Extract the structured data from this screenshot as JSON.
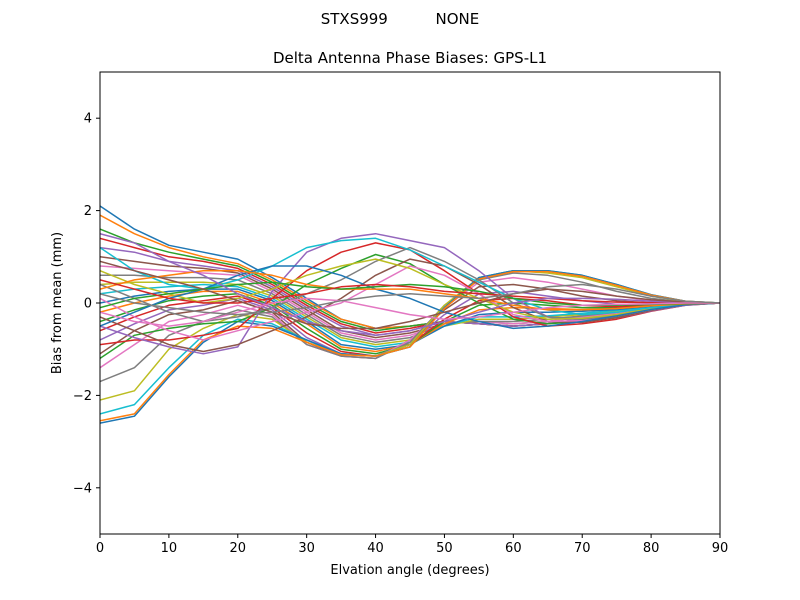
{
  "suptitle": "STXS999          NONE",
  "chart_data": {
    "type": "line",
    "title": "Delta Antenna Phase Biases: GPS-L1",
    "xlabel": "Elvation angle (degrees)",
    "ylabel": "Bias from mean (mm)",
    "xlim": [
      0,
      90
    ],
    "ylim": [
      -5,
      5
    ],
    "xticks": [
      0,
      10,
      20,
      30,
      40,
      50,
      60,
      70,
      80,
      90
    ],
    "yticks": [
      -4,
      -2,
      0,
      2,
      4
    ],
    "grid": false,
    "legend": "none",
    "x": [
      0,
      5,
      10,
      15,
      20,
      25,
      30,
      35,
      40,
      45,
      50,
      55,
      60,
      65,
      70,
      75,
      80,
      85,
      90
    ],
    "colors": [
      "#1f77b4",
      "#ff7f0e",
      "#2ca02c",
      "#d62728",
      "#9467bd",
      "#8c564b",
      "#e377c2",
      "#7f7f7f",
      "#bcbd22",
      "#17becf"
    ],
    "series": [
      {
        "values": [
          2.1,
          1.6,
          1.25,
          1.1,
          0.95,
          0.55,
          0.1,
          -0.35,
          -0.55,
          -0.5,
          -0.4,
          -0.45,
          -0.5,
          -0.45,
          -0.35,
          -0.25,
          -0.12,
          -0.04,
          0
        ]
      },
      {
        "values": [
          1.9,
          1.5,
          1.2,
          1.0,
          0.85,
          0.5,
          0.05,
          -0.35,
          -0.55,
          -0.5,
          -0.4,
          -0.45,
          -0.5,
          -0.45,
          -0.35,
          -0.25,
          -0.12,
          -0.04,
          0
        ]
      },
      {
        "values": [
          1.6,
          1.3,
          1.1,
          0.95,
          0.8,
          0.45,
          0.0,
          -0.4,
          -0.6,
          -0.5,
          -0.4,
          -0.45,
          -0.5,
          -0.45,
          -0.35,
          -0.25,
          -0.12,
          -0.04,
          0
        ]
      },
      {
        "values": [
          1.4,
          1.2,
          1.0,
          0.9,
          0.75,
          0.4,
          -0.05,
          -0.45,
          -0.65,
          -0.55,
          -0.4,
          -0.45,
          -0.5,
          -0.45,
          -0.35,
          -0.25,
          -0.12,
          -0.04,
          0
        ]
      },
      {
        "values": [
          1.2,
          1.1,
          0.9,
          0.8,
          0.7,
          0.35,
          -0.1,
          -0.5,
          -0.7,
          -0.6,
          -0.4,
          -0.45,
          -0.5,
          -0.45,
          -0.35,
          -0.25,
          -0.12,
          -0.04,
          0
        ]
      },
      {
        "values": [
          1.0,
          0.9,
          0.8,
          0.75,
          0.65,
          0.3,
          -0.15,
          -0.6,
          -0.75,
          -0.65,
          -0.45,
          -0.4,
          -0.45,
          -0.4,
          -0.3,
          -0.22,
          -0.1,
          -0.03,
          0
        ]
      },
      {
        "values": [
          0.8,
          0.75,
          0.7,
          0.65,
          0.6,
          0.25,
          -0.2,
          -0.65,
          -0.8,
          -0.7,
          -0.45,
          -0.4,
          -0.45,
          -0.4,
          -0.3,
          -0.22,
          -0.1,
          -0.03,
          0
        ]
      },
      {
        "values": [
          0.6,
          0.6,
          0.55,
          0.55,
          0.5,
          0.2,
          -0.25,
          -0.7,
          -0.85,
          -0.75,
          -0.45,
          -0.4,
          -0.4,
          -0.35,
          -0.28,
          -0.2,
          -0.1,
          -0.03,
          0
        ]
      },
      {
        "values": [
          0.4,
          0.45,
          0.45,
          0.45,
          0.4,
          0.15,
          -0.3,
          -0.75,
          -0.9,
          -0.8,
          -0.5,
          -0.35,
          -0.35,
          -0.3,
          -0.25,
          -0.18,
          -0.09,
          -0.03,
          0
        ]
      },
      {
        "values": [
          0.2,
          0.3,
          0.35,
          0.4,
          0.35,
          0.1,
          -0.35,
          -0.8,
          -0.95,
          -0.85,
          -0.5,
          -0.3,
          -0.3,
          -0.28,
          -0.22,
          -0.16,
          -0.08,
          -0.02,
          0
        ]
      },
      {
        "values": [
          0.0,
          0.15,
          0.25,
          0.3,
          0.3,
          0.05,
          -0.4,
          -0.9,
          -1.0,
          -0.9,
          -0.5,
          -0.25,
          -0.2,
          -0.2,
          -0.18,
          -0.14,
          -0.07,
          -0.02,
          0
        ]
      },
      {
        "values": [
          -0.2,
          0.0,
          0.15,
          0.25,
          0.25,
          0.0,
          -0.45,
          -0.95,
          -1.05,
          -0.9,
          -0.45,
          -0.15,
          -0.1,
          -0.12,
          -0.14,
          -0.12,
          -0.06,
          -0.02,
          0
        ]
      },
      {
        "values": [
          -0.4,
          -0.15,
          0.05,
          0.15,
          0.2,
          -0.05,
          -0.55,
          -1.0,
          -1.1,
          -0.9,
          -0.4,
          -0.05,
          0.0,
          -0.05,
          -0.1,
          -0.1,
          -0.05,
          -0.02,
          0
        ]
      },
      {
        "values": [
          -0.6,
          -0.3,
          -0.05,
          0.05,
          0.15,
          -0.1,
          -0.65,
          -1.05,
          -1.15,
          -0.9,
          -0.35,
          0.05,
          0.1,
          0.05,
          -0.05,
          -0.08,
          -0.04,
          -0.01,
          0
        ]
      },
      {
        "values": [
          -0.8,
          -0.45,
          -0.15,
          -0.05,
          0.1,
          -0.15,
          -0.75,
          -1.1,
          -1.15,
          -0.85,
          -0.25,
          0.2,
          0.25,
          0.15,
          0.05,
          -0.03,
          -0.02,
          -0.01,
          0
        ]
      },
      {
        "values": [
          -1.1,
          -0.6,
          -0.25,
          -0.15,
          0.05,
          -0.2,
          -0.85,
          -1.15,
          -1.2,
          -0.8,
          -0.15,
          0.35,
          0.4,
          0.3,
          0.15,
          0.05,
          0.0,
          0.0,
          0
        ]
      },
      {
        "values": [
          -1.4,
          -0.9,
          -0.4,
          -0.25,
          -0.05,
          -0.25,
          -0.9,
          -1.15,
          -1.2,
          -0.8,
          -0.1,
          0.45,
          0.55,
          0.45,
          0.3,
          0.15,
          0.05,
          0.01,
          0
        ]
      },
      {
        "values": [
          -1.7,
          -1.4,
          -0.7,
          -0.4,
          -0.15,
          -0.3,
          -0.9,
          -1.15,
          -1.2,
          -0.85,
          -0.05,
          0.5,
          0.65,
          0.6,
          0.45,
          0.25,
          0.1,
          0.02,
          0
        ]
      },
      {
        "values": [
          -2.1,
          -1.9,
          -1.0,
          -0.55,
          -0.25,
          -0.35,
          -0.85,
          -1.1,
          -1.15,
          -0.9,
          -0.05,
          0.55,
          0.7,
          0.65,
          0.55,
          0.35,
          0.15,
          0.03,
          0
        ]
      },
      {
        "values": [
          -2.4,
          -2.2,
          -1.4,
          -0.7,
          -0.35,
          -0.45,
          -0.8,
          -1.1,
          -1.15,
          -0.95,
          -0.1,
          0.55,
          0.7,
          0.7,
          0.6,
          0.4,
          0.18,
          0.04,
          0
        ]
      },
      {
        "values": [
          -2.6,
          -2.45,
          -1.6,
          -0.85,
          -0.4,
          -0.5,
          -0.8,
          -1.1,
          -1.15,
          -0.95,
          -0.1,
          0.55,
          0.7,
          0.7,
          0.6,
          0.4,
          0.18,
          0.04,
          0
        ]
      },
      {
        "values": [
          -2.55,
          -2.4,
          -1.55,
          -0.8,
          -0.5,
          -0.55,
          -0.85,
          -1.12,
          -1.15,
          -0.95,
          -0.12,
          0.52,
          0.68,
          0.68,
          0.58,
          0.38,
          0.17,
          0.04,
          0
        ]
      },
      {
        "values": [
          -1.2,
          -0.7,
          -0.55,
          -0.45,
          -0.4,
          -0.1,
          0.4,
          0.75,
          1.05,
          0.85,
          0.4,
          0.0,
          -0.35,
          -0.45,
          -0.4,
          -0.3,
          -0.15,
          -0.04,
          0
        ]
      },
      {
        "values": [
          -0.9,
          -0.8,
          -0.8,
          -0.7,
          -0.55,
          0.1,
          0.7,
          1.1,
          1.3,
          1.15,
          0.7,
          0.2,
          -0.3,
          -0.5,
          -0.45,
          -0.35,
          -0.18,
          -0.05,
          0
        ]
      },
      {
        "values": [
          -0.5,
          -0.75,
          -0.95,
          -1.1,
          -0.95,
          0.25,
          1.1,
          1.4,
          1.5,
          1.35,
          1.2,
          0.7,
          0.1,
          -0.3,
          -0.4,
          -0.32,
          -0.17,
          -0.05,
          0
        ]
      },
      {
        "values": [
          -0.3,
          -0.6,
          -0.9,
          -1.05,
          -0.9,
          -0.6,
          -0.3,
          0.1,
          0.6,
          0.95,
          0.8,
          0.4,
          -0.1,
          -0.4,
          -0.42,
          -0.32,
          -0.16,
          -0.04,
          0
        ]
      },
      {
        "values": [
          0.1,
          -0.3,
          -0.6,
          -0.8,
          -0.6,
          -0.4,
          -0.2,
          0.0,
          0.4,
          0.8,
          0.6,
          0.2,
          -0.25,
          -0.4,
          -0.38,
          -0.28,
          -0.14,
          -0.04,
          0
        ]
      },
      {
        "values": [
          0.4,
          0.1,
          -0.2,
          -0.4,
          -0.3,
          -0.1,
          0.2,
          0.5,
          0.9,
          1.2,
          0.9,
          0.5,
          0.0,
          -0.3,
          -0.35,
          -0.27,
          -0.13,
          -0.03,
          0
        ]
      },
      {
        "values": [
          0.7,
          0.4,
          0.2,
          0.0,
          0.1,
          0.3,
          0.6,
          0.8,
          0.95,
          0.75,
          0.4,
          0.1,
          -0.2,
          -0.35,
          -0.33,
          -0.25,
          -0.12,
          -0.03,
          0
        ]
      },
      {
        "values": [
          1.2,
          0.7,
          0.4,
          0.3,
          0.5,
          0.8,
          1.2,
          1.35,
          1.4,
          1.15,
          0.8,
          0.45,
          0.1,
          -0.15,
          -0.25,
          -0.2,
          -0.1,
          -0.03,
          0
        ]
      },
      {
        "values": [
          -0.5,
          -0.2,
          0.1,
          0.3,
          0.6,
          0.8,
          0.8,
          0.6,
          0.3,
          0.1,
          -0.2,
          -0.4,
          -0.55,
          -0.5,
          -0.4,
          -0.28,
          -0.14,
          -0.04,
          0
        ]
      },
      {
        "values": [
          0.3,
          0.5,
          0.6,
          0.7,
          0.7,
          0.6,
          0.4,
          0.3,
          0.3,
          0.3,
          0.2,
          0.1,
          -0.05,
          -0.15,
          -0.15,
          -0.12,
          -0.06,
          -0.02,
          0
        ]
      },
      {
        "values": [
          -0.1,
          0.1,
          0.2,
          0.3,
          0.4,
          0.45,
          0.35,
          0.3,
          0.35,
          0.4,
          0.35,
          0.25,
          0.1,
          0.0,
          -0.05,
          -0.05,
          -0.03,
          -0.01,
          0
        ]
      },
      {
        "values": [
          0.5,
          0.3,
          0.1,
          0.0,
          0.0,
          0.1,
          0.2,
          0.35,
          0.4,
          0.35,
          0.25,
          0.2,
          0.15,
          0.1,
          0.05,
          0.02,
          0.01,
          0.0,
          0
        ]
      },
      {
        "values": [
          1.5,
          1.3,
          0.9,
          0.6,
          0.2,
          -0.1,
          -0.4,
          -0.6,
          -0.7,
          -0.6,
          -0.4,
          -0.2,
          0.0,
          0.1,
          0.1,
          0.08,
          0.04,
          0.01,
          0
        ]
      },
      {
        "values": [
          0.9,
          0.7,
          0.5,
          0.3,
          0.05,
          -0.2,
          -0.45,
          -0.55,
          -0.55,
          -0.4,
          -0.2,
          0.0,
          0.2,
          0.3,
          0.25,
          0.15,
          0.07,
          0.02,
          0
        ]
      },
      {
        "values": [
          -0.2,
          -0.4,
          -0.5,
          -0.4,
          -0.2,
          0.0,
          0.1,
          0.05,
          -0.1,
          -0.25,
          -0.35,
          -0.3,
          -0.2,
          -0.1,
          -0.05,
          -0.03,
          -0.02,
          0.0,
          0
        ]
      },
      {
        "values": [
          0.2,
          0.0,
          -0.1,
          -0.2,
          -0.25,
          -0.2,
          -0.1,
          0.05,
          0.15,
          0.2,
          0.15,
          0.1,
          0.2,
          0.35,
          0.4,
          0.3,
          0.15,
          0.04,
          0
        ]
      }
    ]
  }
}
